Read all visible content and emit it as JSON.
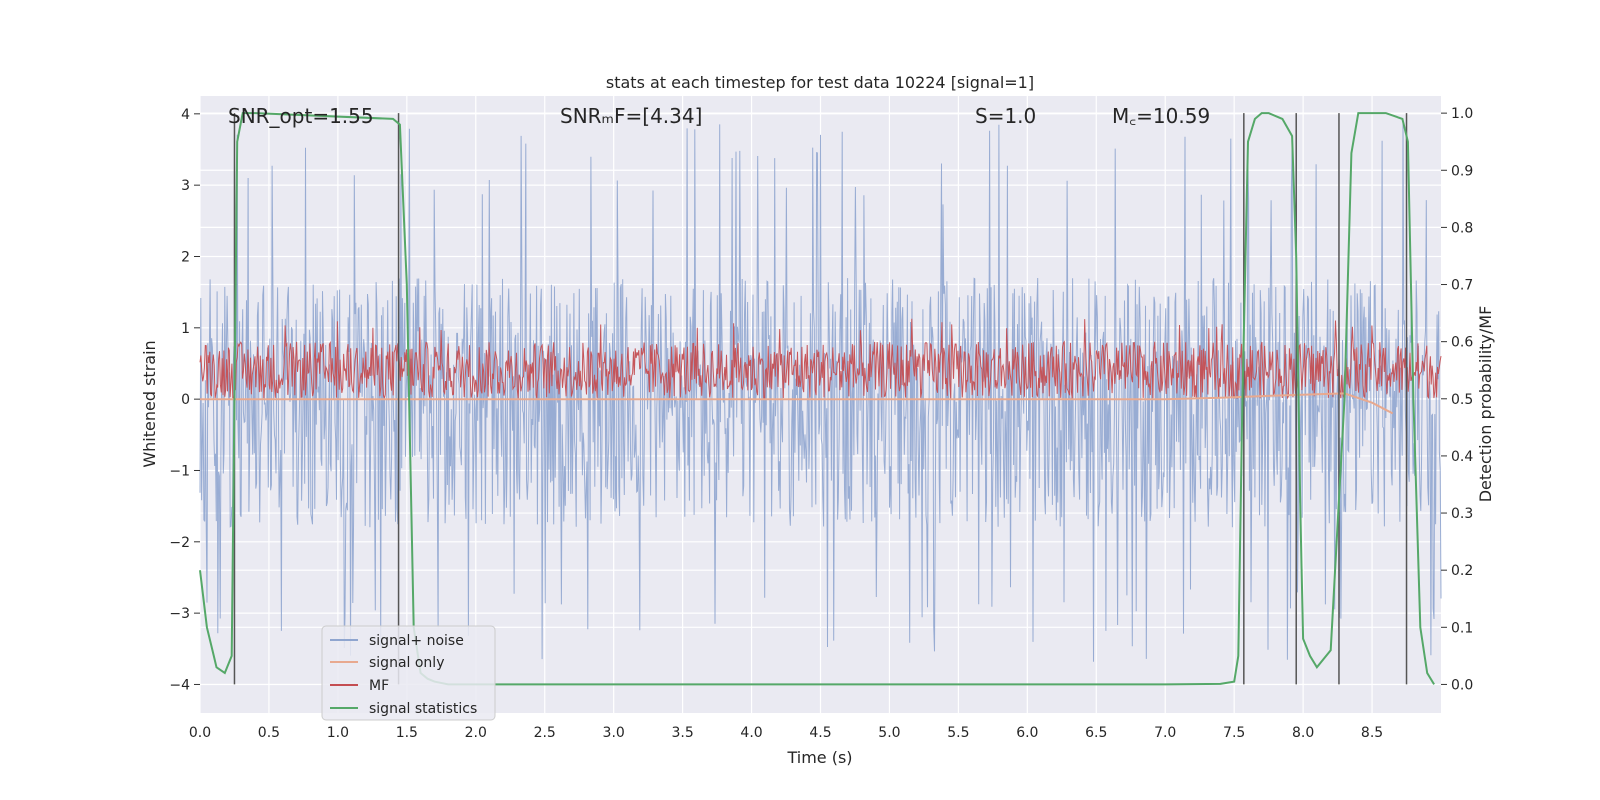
{
  "chart_data": {
    "type": "line",
    "title": "stats at each timestep for test data 10224 [signal=1]",
    "xlabel": "Time (s)",
    "ylabel_left": "Whitened strain",
    "ylabel_right": "Detection probability/MF",
    "xlim": [
      0.0,
      9.0
    ],
    "ylim_left": [
      -4.4,
      4.25
    ],
    "ylim_right": [
      -0.05,
      1.03
    ],
    "xticks": [
      0.0,
      0.5,
      1.0,
      1.5,
      2.0,
      2.5,
      3.0,
      3.5,
      4.0,
      4.5,
      5.0,
      5.5,
      6.0,
      6.5,
      7.0,
      7.5,
      8.0,
      8.5
    ],
    "xtick_labels": [
      "0.0",
      "0.5",
      "1.0",
      "1.5",
      "2.0",
      "2.5",
      "3.0",
      "3.5",
      "4.0",
      "4.5",
      "5.0",
      "5.5",
      "6.0",
      "6.5",
      "7.0",
      "7.5",
      "8.0",
      "8.5"
    ],
    "yticks_left": [
      -4,
      -3,
      -2,
      -1,
      0,
      1,
      2,
      3,
      4
    ],
    "ytick_labels_left": [
      "−4",
      "−3",
      "−2",
      "−1",
      "0",
      "1",
      "2",
      "3",
      "4"
    ],
    "yticks_right": [
      0.0,
      0.1,
      0.2,
      0.3,
      0.4,
      0.5,
      0.6,
      0.7,
      0.8,
      0.9,
      1.0
    ],
    "ytick_labels_right": [
      "0.0",
      "0.1",
      "0.2",
      "0.3",
      "0.4",
      "0.5",
      "0.6",
      "0.7",
      "0.8",
      "0.9",
      "1.0"
    ],
    "annotations": {
      "snr_opt": "SNR_opt=1.55",
      "snr_mf": "SNRₘF=[4.34]",
      "s": "S=1.0",
      "mc": "M꜀=10.59"
    },
    "legend": {
      "location": "lower left",
      "entries": [
        {
          "label": "signal+ noise",
          "color": "#8fa5cf"
        },
        {
          "label": "signal only",
          "color": "#e8a98f"
        },
        {
          "label": "MF",
          "color": "#c44e52"
        },
        {
          "label": "signal statistics",
          "color": "#55a868"
        }
      ]
    },
    "series": [
      {
        "name": "signal+ noise",
        "axis": "left",
        "style": "dense noise band",
        "envelope": {
          "typical_low": -1.8,
          "typical_high": 1.7,
          "peak_low": -3.7,
          "peak_high": 3.9
        }
      },
      {
        "name": "signal only",
        "axis": "left",
        "x": [
          0.0,
          7.0,
          7.4,
          7.8,
          8.1,
          8.3,
          8.5,
          8.6,
          8.65
        ],
        "y": [
          0.0,
          0.0,
          0.02,
          0.05,
          0.07,
          0.08,
          -0.05,
          -0.15,
          -0.2
        ]
      },
      {
        "name": "MF",
        "axis": "right",
        "style": "noisy band",
        "envelope": {
          "low": 0.5,
          "high": 0.6,
          "peak": 0.64
        }
      },
      {
        "name": "signal statistics",
        "axis": "right",
        "x": [
          0.0,
          0.05,
          0.1,
          0.12,
          0.18,
          0.23,
          0.27,
          0.31,
          0.4,
          1.4,
          1.45,
          1.5,
          1.55,
          1.6,
          1.65,
          1.7,
          1.8,
          2.0,
          7.0,
          7.4,
          7.5,
          7.53,
          7.56,
          7.6,
          7.65,
          7.7,
          7.75,
          7.85,
          7.92,
          7.95,
          7.98,
          8.0,
          8.05,
          8.1,
          8.2,
          8.3,
          8.35,
          8.4,
          8.6,
          8.72,
          8.76,
          8.8,
          8.85,
          8.9,
          8.95
        ],
        "y": [
          0.2,
          0.1,
          0.05,
          0.03,
          0.02,
          0.05,
          0.95,
          1.0,
          1.0,
          0.99,
          0.98,
          0.7,
          0.1,
          0.02,
          0.01,
          0.005,
          0.0,
          0.0,
          0.0,
          0.001,
          0.005,
          0.05,
          0.5,
          0.95,
          0.99,
          1.0,
          1.0,
          0.99,
          0.96,
          0.75,
          0.3,
          0.08,
          0.05,
          0.03,
          0.06,
          0.5,
          0.93,
          1.0,
          1.0,
          0.99,
          0.95,
          0.5,
          0.1,
          0.02,
          0.0
        ]
      }
    ],
    "vertical_markers_x": [
      0.25,
      1.44,
      7.57,
      7.95,
      8.26,
      8.75
    ]
  }
}
